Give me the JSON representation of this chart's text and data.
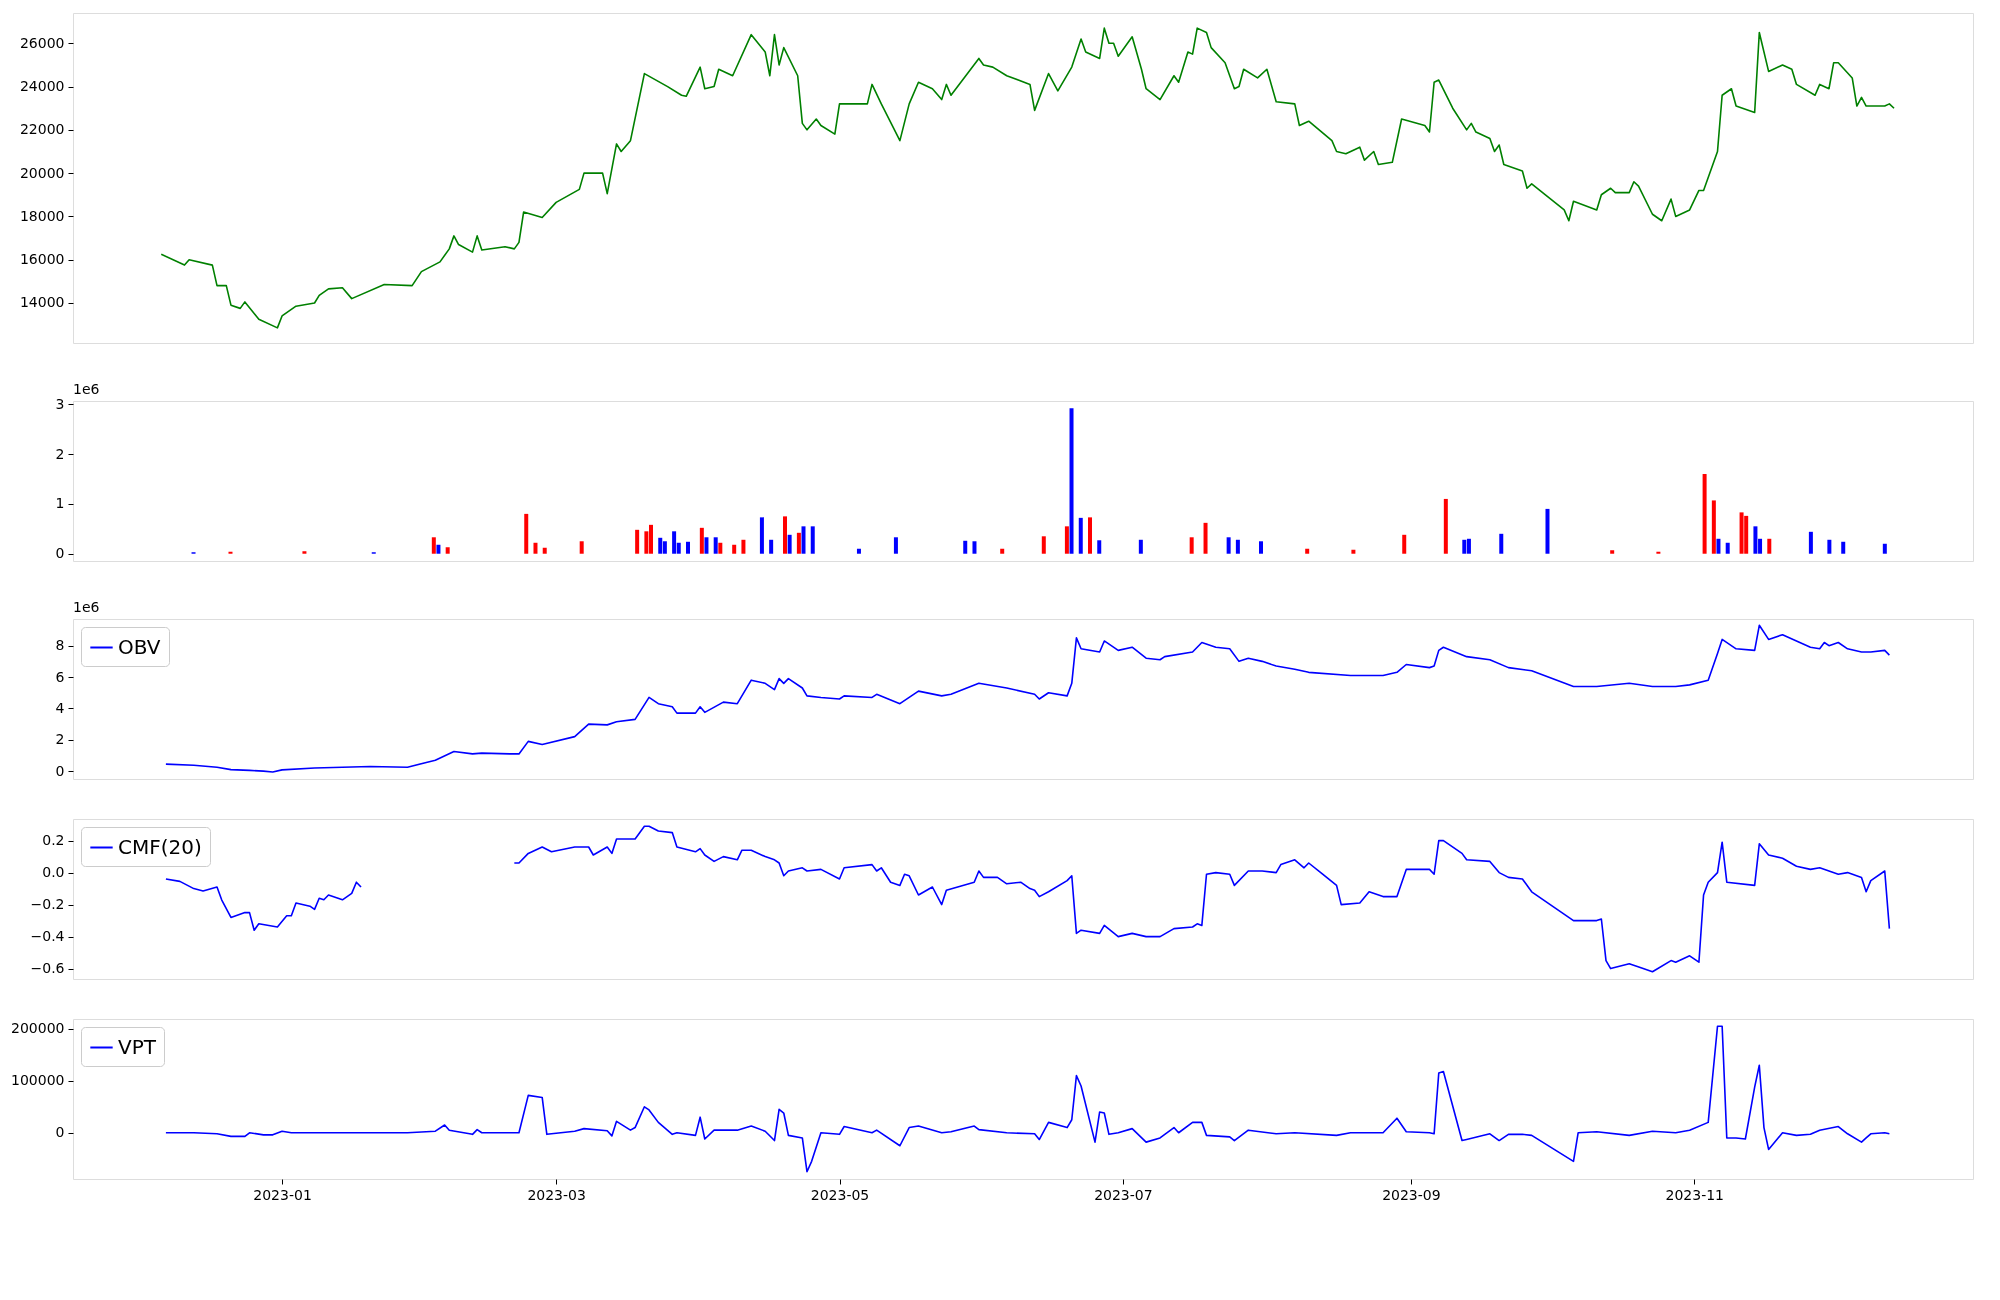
{
  "chart_data": [
    {
      "type": "line",
      "xlim": [
        "2022-11-17",
        "2023-12-31"
      ],
      "ylim": [
        12150,
        27400
      ],
      "yticks": [
        14000,
        16000,
        18000,
        20000,
        22000,
        24000,
        26000
      ],
      "tick_labels": "y",
      "grid": false,
      "legend": false,
      "series": [
        {
          "color": "#008000",
          "x": [
            "2022-12-06",
            "2022-12-11",
            "2022-12-12",
            "2022-12-17",
            "2022-12-18",
            "2022-12-20",
            "2022-12-21",
            "2022-12-23",
            "2022-12-24",
            "2022-12-27",
            "2022-12-31",
            "2023-01-01",
            "2023-01-04",
            "2023-01-08",
            "2023-01-09",
            "2023-01-11",
            "2023-01-14",
            "2023-01-16",
            "2023-01-23",
            "2023-01-29",
            "2023-01-31",
            "2023-02-04",
            "2023-02-06",
            "2023-02-07",
            "2023-02-08",
            "2023-02-11",
            "2023-02-12",
            "2023-02-13",
            "2023-02-18",
            "2023-02-20",
            "2023-02-21",
            "2023-02-22",
            "2023-02-26",
            "2023-03-01",
            "2023-03-06",
            "2023-03-07",
            "2023-03-11",
            "2023-03-12",
            "2023-03-14",
            "2023-03-15",
            "2023-03-17",
            "2023-03-20",
            "2023-03-25",
            "2023-03-28",
            "2023-03-29",
            "2023-04-01",
            "2023-04-02",
            "2023-04-04",
            "2023-04-05",
            "2023-04-08",
            "2023-04-12",
            "2023-04-15",
            "2023-04-16",
            "2023-04-17",
            "2023-04-18",
            "2023-04-19",
            "2023-04-22",
            "2023-04-23",
            "2023-04-24",
            "2023-04-26",
            "2023-04-27",
            "2023-04-30",
            "2023-05-01",
            "2023-05-07",
            "2023-05-08",
            "2023-05-10",
            "2023-05-14",
            "2023-05-16",
            "2023-05-18",
            "2023-05-21",
            "2023-05-23",
            "2023-05-24",
            "2023-05-25",
            "2023-05-31",
            "2023-06-01",
            "2023-06-03",
            "2023-06-06",
            "2023-06-11",
            "2023-06-12",
            "2023-06-15",
            "2023-06-17",
            "2023-06-20",
            "2023-06-22",
            "2023-06-23",
            "2023-06-26",
            "2023-06-27",
            "2023-06-28",
            "2023-06-29",
            "2023-06-30",
            "2023-07-03",
            "2023-07-05",
            "2023-07-06",
            "2023-07-09",
            "2023-07-12",
            "2023-07-13",
            "2023-07-15",
            "2023-07-16",
            "2023-07-17",
            "2023-07-19",
            "2023-07-20",
            "2023-07-23",
            "2023-07-25",
            "2023-07-26",
            "2023-07-27",
            "2023-07-30",
            "2023-08-01",
            "2023-08-03",
            "2023-08-07",
            "2023-08-08",
            "2023-08-10",
            "2023-08-15",
            "2023-08-16",
            "2023-08-18",
            "2023-08-21",
            "2023-08-22",
            "2023-08-24",
            "2023-08-25",
            "2023-08-28",
            "2023-08-30",
            "2023-09-04",
            "2023-09-05",
            "2023-09-06",
            "2023-09-07",
            "2023-09-10",
            "2023-09-13",
            "2023-09-14",
            "2023-09-15",
            "2023-09-18",
            "2023-09-19",
            "2023-09-20",
            "2023-09-21",
            "2023-09-25",
            "2023-09-26",
            "2023-09-27",
            "2023-10-04",
            "2023-10-05",
            "2023-10-06",
            "2023-10-11",
            "2023-10-12",
            "2023-10-14",
            "2023-10-15",
            "2023-10-18",
            "2023-10-19",
            "2023-10-20",
            "2023-10-23",
            "2023-10-25",
            "2023-10-27",
            "2023-10-28",
            "2023-10-31",
            "2023-11-02",
            "2023-11-03",
            "2023-11-06",
            "2023-11-07",
            "2023-11-09",
            "2023-11-10",
            "2023-11-14",
            "2023-11-15",
            "2023-11-17",
            "2023-11-20",
            "2023-11-22",
            "2023-11-23",
            "2023-11-27",
            "2023-11-28",
            "2023-11-30",
            "2023-12-01",
            "2023-12-02",
            "2023-12-05",
            "2023-12-06",
            "2023-12-07",
            "2023-12-08",
            "2023-12-12",
            "2023-12-13",
            "2023-12-14"
          ],
          "values": [
            16250,
            15750,
            16000,
            15750,
            14800,
            14800,
            13900,
            13750,
            14050,
            13250,
            12850,
            13400,
            13850,
            14000,
            14350,
            14650,
            14700,
            14200,
            14850,
            14800,
            15450,
            15900,
            16500,
            17100,
            16700,
            16350,
            17100,
            16450,
            16600,
            16500,
            16800,
            18200,
            17950,
            18650,
            19250,
            20000,
            20000,
            19050,
            21350,
            21000,
            21500,
            24600,
            24000,
            23600,
            23550,
            24900,
            23900,
            24000,
            24800,
            24500,
            26400,
            25600,
            24500,
            26400,
            25000,
            25800,
            24500,
            22300,
            22000,
            22500,
            22200,
            21800,
            23200,
            23200,
            24100,
            23200,
            21500,
            23200,
            24200,
            23900,
            23400,
            24100,
            23600,
            25300,
            25000,
            24900,
            24500,
            24100,
            22900,
            24600,
            23800,
            24900,
            26200,
            25600,
            25300,
            26700,
            26000,
            26000,
            25400,
            26300,
            24800,
            23900,
            23400,
            24500,
            24200,
            25600,
            25500,
            26700,
            26500,
            25800,
            25100,
            23900,
            24000,
            24800,
            24400,
            24800,
            23300,
            23200,
            22200,
            22400,
            21500,
            21000,
            20900,
            21200,
            20600,
            21000,
            20400,
            20500,
            22500,
            22200,
            21900,
            24200,
            24300,
            23000,
            22000,
            22300,
            21900,
            21600,
            21000,
            21300,
            20400,
            20100,
            19300,
            19500,
            18300,
            17800,
            18700,
            18300,
            19000,
            19300,
            19100,
            19100,
            19600,
            19400,
            18100,
            17800,
            18800,
            18000,
            18300,
            19200,
            19200,
            21000,
            23600,
            23900,
            23100,
            22800,
            26500,
            24700,
            25000,
            24800,
            24100,
            23600,
            24100,
            23900,
            25100,
            25100,
            24400,
            23100,
            23500,
            23100,
            23100,
            23200,
            23000
          ]
        }
      ]
    },
    {
      "type": "bar",
      "xlim": [
        "2022-11-17",
        "2023-12-31"
      ],
      "ylim": [
        -0.146,
        3.066
      ],
      "yticks": [
        0,
        1,
        2,
        3
      ],
      "tick_labels": "y",
      "grid": false,
      "legend": false,
      "annotations": [
        "1e6"
      ],
      "series": [
        {
          "x": [
            "2022-12-12",
            "2022-12-20",
            "2023-01-05",
            "2023-01-20",
            "2023-02-02",
            "2023-02-03",
            "2023-02-05",
            "2023-02-22",
            "2023-02-24",
            "2023-02-26",
            "2023-03-06",
            "2023-03-18",
            "2023-03-20",
            "2023-03-21",
            "2023-03-23",
            "2023-03-24",
            "2023-03-26",
            "2023-03-27",
            "2023-03-29",
            "2023-04-01",
            "2023-04-02",
            "2023-04-04",
            "2023-04-05",
            "2023-04-08",
            "2023-04-10",
            "2023-04-14",
            "2023-04-16",
            "2023-04-19",
            "2023-04-20",
            "2023-04-22",
            "2023-04-23",
            "2023-04-25",
            "2023-05-05",
            "2023-05-13",
            "2023-05-28",
            "2023-05-30",
            "2023-06-05",
            "2023-06-14",
            "2023-06-19",
            "2023-06-20",
            "2023-06-22",
            "2023-06-24",
            "2023-06-26",
            "2023-07-05",
            "2023-07-16",
            "2023-07-19",
            "2023-07-24",
            "2023-07-26",
            "2023-07-31",
            "2023-08-10",
            "2023-08-20",
            "2023-08-31",
            "2023-09-09",
            "2023-09-13",
            "2023-09-14",
            "2023-09-21",
            "2023-10-01",
            "2023-10-15",
            "2023-10-25",
            "2023-11-04",
            "2023-11-06",
            "2023-11-07",
            "2023-11-09",
            "2023-11-12",
            "2023-11-13",
            "2023-11-15",
            "2023-11-16",
            "2023-11-18",
            "2023-11-27",
            "2023-12-01",
            "2023-12-04",
            "2023-12-13"
          ],
          "values": [
            0.03,
            0.04,
            0.05,
            0.03,
            0.33,
            0.18,
            0.13,
            0.8,
            0.22,
            0.12,
            0.25,
            0.48,
            0.45,
            0.58,
            0.32,
            0.25,
            0.45,
            0.22,
            0.24,
            0.52,
            0.33,
            0.33,
            0.22,
            0.18,
            0.28,
            0.73,
            0.28,
            0.75,
            0.38,
            0.42,
            0.55,
            0.55,
            0.1,
            0.33,
            0.26,
            0.25,
            0.1,
            0.35,
            0.55,
            2.92,
            0.72,
            0.73,
            0.27,
            0.28,
            0.33,
            0.62,
            0.33,
            0.28,
            0.25,
            0.1,
            0.08,
            0.38,
            1.1,
            0.28,
            0.3,
            0.4,
            0.9,
            0.07,
            0.04,
            1.6,
            1.07,
            0.3,
            0.22,
            0.83,
            0.76,
            0.55,
            0.3,
            0.3,
            0.44,
            0.28,
            0.24,
            0.2
          ],
          "colors": [
            "#0000ff",
            "#ff0000",
            "#ff0000",
            "#0000ff",
            "#ff0000",
            "#0000ff",
            "#ff0000",
            "#ff0000",
            "#ff0000",
            "#ff0000",
            "#ff0000",
            "#ff0000",
            "#ff0000",
            "#ff0000",
            "#0000ff",
            "#0000ff",
            "#0000ff",
            "#0000ff",
            "#0000ff",
            "#ff0000",
            "#0000ff",
            "#0000ff",
            "#ff0000",
            "#ff0000",
            "#ff0000",
            "#0000ff",
            "#0000ff",
            "#ff0000",
            "#0000ff",
            "#ff0000",
            "#0000ff",
            "#0000ff",
            "#0000ff",
            "#0000ff",
            "#0000ff",
            "#0000ff",
            "#ff0000",
            "#ff0000",
            "#ff0000",
            "#0000ff",
            "#0000ff",
            "#ff0000",
            "#0000ff",
            "#0000ff",
            "#ff0000",
            "#ff0000",
            "#0000ff",
            "#0000ff",
            "#0000ff",
            "#ff0000",
            "#ff0000",
            "#ff0000",
            "#ff0000",
            "#0000ff",
            "#0000ff",
            "#0000ff",
            "#0000ff",
            "#ff0000",
            "#ff0000",
            "#ff0000",
            "#ff0000",
            "#0000ff",
            "#0000ff",
            "#ff0000",
            "#ff0000",
            "#0000ff",
            "#0000ff",
            "#ff0000",
            "#0000ff",
            "#0000ff",
            "#0000ff",
            "#0000ff"
          ]
        }
      ]
    },
    {
      "type": "line",
      "xlim": [
        "2022-11-17",
        "2023-12-31"
      ],
      "ylim": [
        -0.5,
        9.7
      ],
      "yticks": [
        0,
        2,
        4,
        6,
        8
      ],
      "tick_labels": "y",
      "grid": false,
      "legend": "top left",
      "annotations": [
        "1e6"
      ],
      "series": [
        {
          "name": "OBV",
          "color": "#0000ff",
          "x": [
            "2022-12-07",
            "2022-12-13",
            "2022-12-18",
            "2022-12-21",
            "2022-12-25",
            "2022-12-28",
            "2022-12-30",
            "2023-01-01",
            "2023-01-08",
            "2023-01-14",
            "2023-01-20",
            "2023-01-28",
            "2023-02-03",
            "2023-02-07",
            "2023-02-11",
            "2023-02-13",
            "2023-02-19",
            "2023-02-21",
            "2023-02-23",
            "2023-02-26",
            "2023-03-05",
            "2023-03-08",
            "2023-03-12",
            "2023-03-14",
            "2023-03-18",
            "2023-03-21",
            "2023-03-23",
            "2023-03-26",
            "2023-03-27",
            "2023-03-31",
            "2023-04-01",
            "2023-04-02",
            "2023-04-06",
            "2023-04-09",
            "2023-04-12",
            "2023-04-15",
            "2023-04-17",
            "2023-04-18",
            "2023-04-19",
            "2023-04-20",
            "2023-04-23",
            "2023-04-24",
            "2023-04-27",
            "2023-05-01",
            "2023-05-02",
            "2023-05-08",
            "2023-05-09",
            "2023-05-14",
            "2023-05-18",
            "2023-05-23",
            "2023-05-25",
            "2023-05-31",
            "2023-06-06",
            "2023-06-12",
            "2023-06-13",
            "2023-06-15",
            "2023-06-19",
            "2023-06-20",
            "2023-06-21",
            "2023-06-22",
            "2023-06-26",
            "2023-06-27",
            "2023-06-30",
            "2023-07-03",
            "2023-07-06",
            "2023-07-09",
            "2023-07-10",
            "2023-07-16",
            "2023-07-18",
            "2023-07-21",
            "2023-07-24",
            "2023-07-26",
            "2023-07-28",
            "2023-07-31",
            "2023-08-03",
            "2023-08-07",
            "2023-08-10",
            "2023-08-19",
            "2023-08-26",
            "2023-08-29",
            "2023-08-31",
            "2023-09-05",
            "2023-09-06",
            "2023-09-07",
            "2023-09-08",
            "2023-09-13",
            "2023-09-18",
            "2023-09-22",
            "2023-09-27",
            "2023-10-06",
            "2023-10-11",
            "2023-10-18",
            "2023-10-23",
            "2023-10-28",
            "2023-10-31",
            "2023-11-04",
            "2023-11-06",
            "2023-11-07",
            "2023-11-10",
            "2023-11-14",
            "2023-11-15",
            "2023-11-17",
            "2023-11-20",
            "2023-11-23",
            "2023-11-26",
            "2023-11-28",
            "2023-11-29",
            "2023-11-30",
            "2023-12-02",
            "2023-12-04",
            "2023-12-07",
            "2023-12-09",
            "2023-12-12",
            "2023-12-13"
          ],
          "values": [
            0.45,
            0.38,
            0.25,
            0.1,
            0.05,
            0,
            -0.05,
            0.08,
            0.2,
            0.25,
            0.3,
            0.25,
            0.7,
            1.25,
            1.1,
            1.15,
            1.1,
            1.1,
            1.9,
            1.7,
            2.2,
            3.0,
            2.95,
            3.15,
            3.3,
            4.7,
            4.3,
            4.1,
            3.7,
            3.7,
            4.1,
            3.75,
            4.4,
            4.3,
            5.8,
            5.6,
            5.2,
            5.9,
            5.6,
            5.9,
            5.3,
            4.8,
            4.7,
            4.6,
            4.8,
            4.7,
            4.9,
            4.3,
            5.1,
            4.8,
            4.9,
            5.6,
            5.3,
            4.9,
            4.6,
            5.0,
            4.8,
            5.6,
            8.5,
            7.8,
            7.6,
            8.3,
            7.7,
            7.9,
            7.2,
            7.1,
            7.3,
            7.6,
            8.2,
            7.9,
            7.8,
            7.0,
            7.2,
            7.0,
            6.7,
            6.5,
            6.3,
            6.1,
            6.1,
            6.3,
            6.8,
            6.6,
            6.7,
            7.7,
            7.9,
            7.3,
            7.1,
            6.6,
            6.4,
            5.4,
            5.4,
            5.6,
            5.4,
            5.4,
            5.5,
            5.8,
            7.5,
            8.4,
            7.8,
            7.7,
            9.3,
            8.4,
            8.7,
            8.3,
            7.9,
            7.8,
            8.2,
            8.0,
            8.2,
            7.8,
            7.6,
            7.6,
            7.7,
            7.4
          ]
        }
      ]
    },
    {
      "type": "line",
      "xlim": [
        "2022-11-17",
        "2023-12-31"
      ],
      "ylim": [
        -0.665,
        0.335
      ],
      "yticks": [
        {
          "value": -0.6,
          "label": "−0.6"
        },
        {
          "value": -0.4,
          "label": "−0.4"
        },
        {
          "value": -0.2,
          "label": "−0.2"
        },
        {
          "value": 0,
          "label": "0.0"
        },
        0.2
      ],
      "tick_labels": "y",
      "grid": false,
      "legend": "top left",
      "series": [
        {
          "name": "CMF(20)",
          "color": "#0000ff",
          "x": [
            "2022-12-07",
            "2022-12-10",
            "2022-12-13",
            "2022-12-15",
            "2022-12-18",
            "2022-12-19",
            "2022-12-21",
            "2022-12-24",
            "2022-12-25",
            "2022-12-26",
            "2022-12-27",
            "2022-12-31",
            "2023-01-02",
            "2023-01-03",
            "2023-01-04",
            "2023-01-07",
            "2023-01-08",
            "2023-01-09",
            "2023-01-10",
            "2023-01-11",
            "2023-01-14",
            "2023-01-16",
            "2023-01-17",
            "2023-01-18",
            "2023-02-03",
            "2023-02-20",
            "2023-02-21",
            "2023-02-23",
            "2023-02-26",
            "2023-02-28",
            "2023-03-05",
            "2023-03-08",
            "2023-03-09",
            "2023-03-12",
            "2023-03-13",
            "2023-03-14",
            "2023-03-18",
            "2023-03-20",
            "2023-03-21",
            "2023-03-23",
            "2023-03-26",
            "2023-03-27",
            "2023-03-31",
            "2023-04-01",
            "2023-04-02",
            "2023-04-04",
            "2023-04-06",
            "2023-04-09",
            "2023-04-10",
            "2023-04-12",
            "2023-04-15",
            "2023-04-17",
            "2023-04-18",
            "2023-04-19",
            "2023-04-20",
            "2023-04-23",
            "2023-04-24",
            "2023-04-27",
            "2023-05-01",
            "2023-05-02",
            "2023-05-08",
            "2023-05-09",
            "2023-05-10",
            "2023-05-12",
            "2023-05-14",
            "2023-05-15",
            "2023-05-16",
            "2023-05-18",
            "2023-05-21",
            "2023-05-23",
            "2023-05-24",
            "2023-05-30",
            "2023-05-31",
            "2023-06-01",
            "2023-06-04",
            "2023-06-06",
            "2023-06-09",
            "2023-06-11",
            "2023-06-12",
            "2023-06-13",
            "2023-06-15",
            "2023-06-19",
            "2023-06-20",
            "2023-06-21",
            "2023-06-22",
            "2023-06-26",
            "2023-06-27",
            "2023-06-30",
            "2023-07-03",
            "2023-07-06",
            "2023-07-09",
            "2023-07-12",
            "2023-07-16",
            "2023-07-17",
            "2023-07-18",
            "2023-07-19",
            "2023-07-21",
            "2023-07-24",
            "2023-07-25",
            "2023-07-28",
            "2023-07-31",
            "2023-08-03",
            "2023-08-04",
            "2023-08-07",
            "2023-08-09",
            "2023-08-10",
            "2023-08-13",
            "2023-08-16",
            "2023-08-17",
            "2023-08-21",
            "2023-08-23",
            "2023-08-26",
            "2023-08-29",
            "2023-08-31",
            "2023-09-05",
            "2023-09-06",
            "2023-09-07",
            "2023-09-08",
            "2023-09-12",
            "2023-09-13",
            "2023-09-18",
            "2023-09-20",
            "2023-09-22",
            "2023-09-25",
            "2023-09-27",
            "2023-10-06",
            "2023-10-11",
            "2023-10-12",
            "2023-10-13",
            "2023-10-14",
            "2023-10-18",
            "2023-10-21",
            "2023-10-23",
            "2023-10-27",
            "2023-10-28",
            "2023-10-31",
            "2023-11-02",
            "2023-11-03",
            "2023-11-04",
            "2023-11-06",
            "2023-11-07",
            "2023-11-08",
            "2023-11-14",
            "2023-11-15",
            "2023-11-17",
            "2023-11-20",
            "2023-11-23",
            "2023-11-26",
            "2023-11-28",
            "2023-12-02",
            "2023-12-04",
            "2023-12-07",
            "2023-12-08",
            "2023-12-09",
            "2023-12-12",
            "2023-12-13"
          ],
          "values": [
            -0.04,
            -0.055,
            -0.1,
            -0.115,
            -0.09,
            -0.17,
            -0.28,
            -0.25,
            -0.25,
            -0.36,
            -0.32,
            -0.34,
            -0.27,
            -0.27,
            -0.19,
            -0.21,
            -0.23,
            -0.16,
            -0.17,
            -0.14,
            -0.17,
            -0.13,
            -0.06,
            -0.09,
            null,
            0.06,
            0.06,
            0.12,
            0.16,
            0.13,
            0.16,
            0.16,
            0.11,
            0.16,
            0.12,
            0.21,
            0.21,
            0.29,
            0.29,
            0.26,
            0.25,
            0.16,
            0.13,
            0.15,
            0.11,
            0.07,
            0.1,
            0.08,
            0.14,
            0.14,
            0.1,
            0.08,
            0.06,
            -0.02,
            0.01,
            0.03,
            0.01,
            0.02,
            -0.04,
            0.03,
            0.05,
            0.01,
            0.03,
            -0.06,
            -0.08,
            -0.01,
            -0.02,
            -0.14,
            -0.09,
            -0.2,
            -0.11,
            -0.06,
            0.01,
            -0.03,
            -0.03,
            -0.07,
            -0.06,
            -0.1,
            -0.11,
            -0.15,
            -0.12,
            -0.05,
            -0.02,
            -0.38,
            -0.36,
            -0.38,
            -0.33,
            -0.4,
            -0.38,
            -0.4,
            -0.4,
            -0.35,
            -0.34,
            -0.32,
            -0.33,
            -0.01,
            0.0,
            -0.01,
            -0.08,
            0.01,
            0.01,
            0.0,
            0.05,
            0.08,
            0.03,
            0.06,
            -0.01,
            -0.08,
            -0.2,
            -0.19,
            -0.12,
            -0.15,
            -0.15,
            0.02,
            0.02,
            -0.01,
            0.2,
            0.2,
            0.12,
            0.08,
            0.07,
            0.0,
            -0.03,
            -0.04,
            -0.12,
            -0.3,
            -0.3,
            -0.29,
            -0.55,
            -0.6,
            -0.57,
            -0.6,
            -0.62,
            -0.55,
            -0.56,
            -0.52,
            -0.56,
            -0.14,
            -0.06,
            0.0,
            0.19,
            -0.06,
            -0.08,
            0.18,
            0.11,
            0.09,
            0.04,
            0.02,
            0.03,
            -0.01,
            0.0,
            -0.03,
            -0.12,
            -0.05,
            0.01,
            -0.35
          ]
        }
      ]
    },
    {
      "type": "line",
      "xlim": [
        "2022-11-17",
        "2023-12-31"
      ],
      "ylim": [
        -89000,
        219000
      ],
      "yticks": [
        0,
        100000,
        200000
      ],
      "xticks": [
        {
          "value": "2023-01-01",
          "label": "2023-01"
        },
        {
          "value": "2023-03-01",
          "label": "2023-03"
        },
        {
          "value": "2023-05-01",
          "label": "2023-05"
        },
        {
          "value": "2023-07-01",
          "label": "2023-07"
        },
        {
          "value": "2023-09-01",
          "label": "2023-09"
        },
        {
          "value": "2023-11-01",
          "label": "2023-11"
        }
      ],
      "grid": false,
      "legend": "top left",
      "series": [
        {
          "name": "VPT",
          "color": "#0000ff",
          "x": [
            "2022-12-07",
            "2022-12-13",
            "2022-12-18",
            "2022-12-21",
            "2022-12-24",
            "2022-12-25",
            "2022-12-28",
            "2022-12-30",
            "2023-01-01",
            "2023-01-03",
            "2023-01-08",
            "2023-01-14",
            "2023-01-28",
            "2023-02-03",
            "2023-02-05",
            "2023-02-06",
            "2023-02-11",
            "2023-02-12",
            "2023-02-13",
            "2023-02-21",
            "2023-02-23",
            "2023-02-26",
            "2023-02-27",
            "2023-03-05",
            "2023-03-07",
            "2023-03-12",
            "2023-03-13",
            "2023-03-14",
            "2023-03-17",
            "2023-03-18",
            "2023-03-20",
            "2023-03-21",
            "2023-03-23",
            "2023-03-26",
            "2023-03-27",
            "2023-03-31",
            "2023-04-01",
            "2023-04-02",
            "2023-04-04",
            "2023-04-09",
            "2023-04-12",
            "2023-04-15",
            "2023-04-17",
            "2023-04-18",
            "2023-04-19",
            "2023-04-20",
            "2023-04-23",
            "2023-04-24",
            "2023-04-25",
            "2023-04-27",
            "2023-05-01",
            "2023-05-02",
            "2023-05-08",
            "2023-05-09",
            "2023-05-14",
            "2023-05-16",
            "2023-05-18",
            "2023-05-23",
            "2023-05-25",
            "2023-05-30",
            "2023-05-31",
            "2023-06-06",
            "2023-06-12",
            "2023-06-13",
            "2023-06-15",
            "2023-06-19",
            "2023-06-20",
            "2023-06-21",
            "2023-06-22",
            "2023-06-25",
            "2023-06-26",
            "2023-06-27",
            "2023-06-28",
            "2023-06-30",
            "2023-07-03",
            "2023-07-06",
            "2023-07-09",
            "2023-07-12",
            "2023-07-13",
            "2023-07-16",
            "2023-07-18",
            "2023-07-19",
            "2023-07-24",
            "2023-07-25",
            "2023-07-28",
            "2023-08-03",
            "2023-08-07",
            "2023-08-16",
            "2023-08-19",
            "2023-08-26",
            "2023-08-29",
            "2023-08-31",
            "2023-09-05",
            "2023-09-06",
            "2023-09-07",
            "2023-09-08",
            "2023-09-12",
            "2023-09-13",
            "2023-09-18",
            "2023-09-20",
            "2023-09-22",
            "2023-09-25",
            "2023-09-27",
            "2023-10-06",
            "2023-10-07",
            "2023-10-11",
            "2023-10-18",
            "2023-10-23",
            "2023-10-28",
            "2023-10-31",
            "2023-11-04",
            "2023-11-06",
            "2023-11-07",
            "2023-11-08",
            "2023-11-10",
            "2023-11-12",
            "2023-11-14",
            "2023-11-15",
            "2023-11-16",
            "2023-11-17",
            "2023-11-20",
            "2023-11-23",
            "2023-11-26",
            "2023-11-28",
            "2023-12-02",
            "2023-12-04",
            "2023-12-07",
            "2023-12-08",
            "2023-12-09",
            "2023-12-12",
            "2023-12-13"
          ],
          "values": [
            0,
            0,
            -2000,
            -7000,
            -7000,
            0,
            -4000,
            -4000,
            3000,
            0,
            0,
            0,
            0,
            3000,
            15000,
            5000,
            -3000,
            6000,
            0,
            0,
            72000,
            68000,
            -3000,
            3000,
            8000,
            4000,
            -6000,
            22000,
            5000,
            10000,
            50000,
            44000,
            20000,
            -3000,
            0,
            -5000,
            30000,
            -12000,
            5000,
            5000,
            13000,
            3000,
            -15000,
            45000,
            38000,
            -5000,
            -10000,
            -75000,
            -55000,
            0,
            -3000,
            12000,
            0,
            5000,
            -25000,
            10000,
            13000,
            0,
            2000,
            13000,
            6000,
            0,
            -2000,
            -13000,
            20000,
            10000,
            25000,
            110000,
            90000,
            -18000,
            40000,
            38000,
            -3000,
            0,
            8000,
            -18000,
            -10000,
            10000,
            0,
            20000,
            20000,
            -5000,
            -8000,
            -15000,
            5000,
            -2000,
            0,
            -5000,
            0,
            0,
            28000,
            2000,
            0,
            -2000,
            115000,
            118000,
            -15000,
            -13000,
            -2000,
            -15000,
            -3000,
            -3000,
            -5000,
            -55000,
            0,
            2000,
            -5000,
            3000,
            0,
            5000,
            20000,
            205000,
            205000,
            -10000,
            -10000,
            -12000,
            88000,
            130000,
            10000,
            -32000,
            0,
            -5000,
            -3000,
            5000,
            12000,
            -2000,
            -18000,
            -10000,
            -2000,
            0,
            -2000
          ]
        }
      ]
    }
  ]
}
